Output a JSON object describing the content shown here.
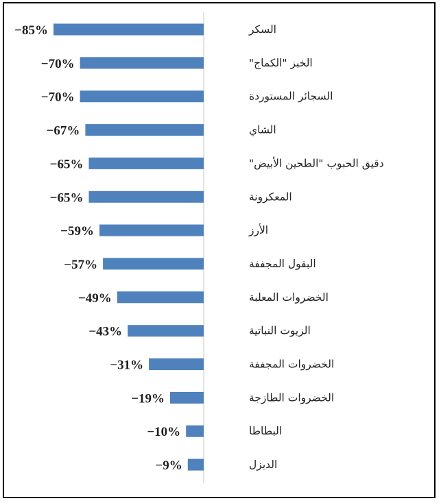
{
  "chart_data": {
    "type": "bar",
    "orientation": "horizontal",
    "categories": [
      "السكر",
      "الخبز \"الكماج\"",
      "السجائر المستوردة",
      "الشاي",
      "دقيق الحبوب \"الطحين الأبيض\"",
      "المعكرونة",
      "الأرز",
      "البقول المجففة",
      "الخضروات المعلبة",
      "الزيوت النباتية",
      "الخضروات المجففة",
      "الخضروات الطازجة",
      "البطاطا",
      "الديزل"
    ],
    "values": [
      -85,
      -70,
      -70,
      -67,
      -65,
      -65,
      -59,
      -57,
      -49,
      -43,
      -31,
      -19,
      -10,
      -9
    ],
    "value_labels": [
      "−85%",
      "−70%",
      "−70%",
      "−67%",
      "−65%",
      "−65%",
      "−59%",
      "−57%",
      "−49%",
      "−43%",
      "−31%",
      "−19%",
      "−10%",
      "−9%"
    ],
    "unit": "%",
    "xlim": [
      -85,
      0
    ],
    "grid": false,
    "legend": "none",
    "bar_color": "#4f81bd",
    "axis_color": "#d9d9d9"
  }
}
